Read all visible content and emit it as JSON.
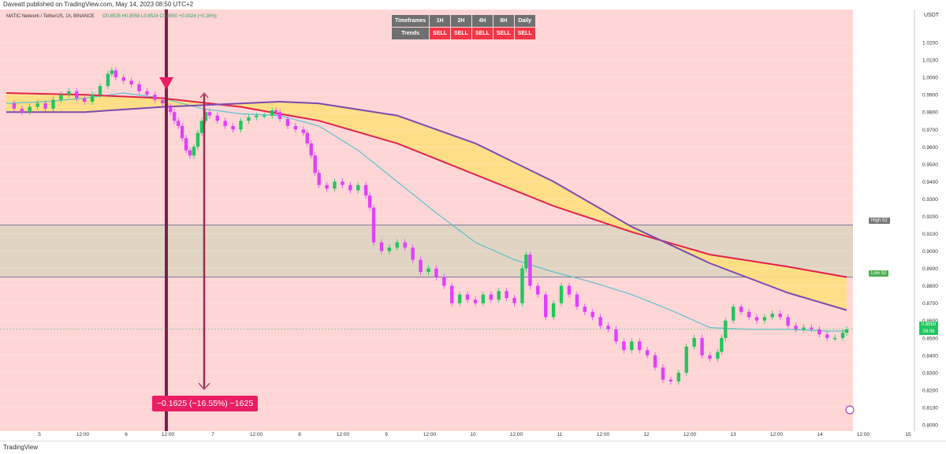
{
  "header": {
    "text": "Daveatt published on TradingView.com, May 14, 2023 08:50 UTC+2"
  },
  "footer": {
    "brand": "TradingView"
  },
  "measure": {
    "label": "−0.1625 (−16.55%) −1625"
  },
  "levels": {
    "high": "High 52",
    "low": "Low 52"
  },
  "price_tag": {
    "value": "0.8550",
    "sub": "09:06"
  },
  "timeframes": {
    "header": [
      "Timeframes",
      "1H",
      "2H",
      "4H",
      "8H",
      "Daily"
    ],
    "row_label": "Trends",
    "values": [
      "SELL",
      "SELL",
      "SELL",
      "SELL",
      "SELL"
    ]
  },
  "colors": {
    "bg_sell": "#ffd6d6",
    "bull": "#22c55e",
    "bear": "#e040fb",
    "ema_fast": "#5bc0cf",
    "ema_red": "#e0234e",
    "ema_purple": "#7b4bb0",
    "fill": "#ffdf80",
    "zone": "#dcd4c0"
  },
  "chart_data": {
    "type": "line",
    "title": "MATIC Network / TetherUS, 1h, BINANCE",
    "ohlc_label": "O0.8525 H0.8558 L0.8524 C0.8550 +0.0024 (+0.28%)",
    "y_axis_unit": "USDT",
    "ylim": [
      0.8,
      1.03
    ],
    "yticks": [
      "1.0200",
      "1.0100",
      "1.0000",
      "0.9900",
      "0.9800",
      "0.9700",
      "0.9600",
      "0.9500",
      "0.9400",
      "0.9300",
      "0.9200",
      "0.9100",
      "0.9000",
      "0.8900",
      "0.8800",
      "0.8700",
      "0.8600",
      "0.8500",
      "0.8400",
      "0.8300",
      "0.8200",
      "0.8100",
      "0.8000"
    ],
    "xticks": [
      "5",
      "12:00",
      "6",
      "12:00",
      "7",
      "12:00",
      "8",
      "12:00",
      "9",
      "12:00",
      "10",
      "12:00",
      "11",
      "12:00",
      "12",
      "12:00",
      "13",
      "12:00",
      "14",
      "12:00",
      "15"
    ],
    "zone": {
      "high": 0.915,
      "low": 0.885
    },
    "series": [
      {
        "kind": "price",
        "x": [
          0,
          10,
          20,
          30,
          40,
          50,
          60,
          70,
          80,
          90,
          100,
          110,
          120,
          130,
          135,
          140,
          150,
          160,
          170,
          180,
          190,
          200,
          205,
          210,
          215,
          220,
          225,
          230,
          235,
          240,
          245,
          250,
          255,
          260,
          270,
          280,
          290,
          300,
          310,
          320,
          330,
          340,
          345,
          350,
          360,
          370,
          380,
          385,
          390,
          395,
          400,
          410,
          420,
          430,
          440,
          450,
          460,
          465,
          470,
          480,
          490,
          500,
          510,
          520,
          530,
          540,
          550,
          560,
          570,
          580,
          590,
          600,
          610,
          620,
          630,
          640,
          650,
          660,
          665,
          670,
          680,
          690,
          700,
          710,
          720,
          730,
          740,
          750,
          760,
          770,
          780,
          790,
          800,
          810,
          820,
          830,
          840,
          850,
          860,
          870,
          880,
          890,
          900,
          910,
          915,
          920,
          930,
          940,
          950,
          960,
          970,
          980,
          990,
          1000,
          1010,
          1020,
          1030,
          1040,
          1050,
          1060,
          1070,
          1075
        ],
        "y": [
          0.985,
          0.982,
          0.98,
          0.983,
          0.985,
          0.982,
          0.987,
          0.99,
          0.992,
          0.988,
          0.986,
          0.99,
          0.995,
          1.002,
          1.004,
          1.0,
          0.998,
          0.996,
          0.992,
          0.99,
          0.987,
          0.985,
          0.983,
          0.98,
          0.975,
          0.972,
          0.965,
          0.958,
          0.955,
          0.96,
          0.968,
          0.975,
          0.98,
          0.978,
          0.975,
          0.972,
          0.97,
          0.975,
          0.977,
          0.978,
          0.978,
          0.981,
          0.98,
          0.976,
          0.972,
          0.97,
          0.968,
          0.962,
          0.955,
          0.945,
          0.938,
          0.936,
          0.94,
          0.938,
          0.935,
          0.938,
          0.932,
          0.925,
          0.905,
          0.9,
          0.902,
          0.905,
          0.902,
          0.895,
          0.888,
          0.89,
          0.885,
          0.88,
          0.87,
          0.875,
          0.872,
          0.87,
          0.875,
          0.872,
          0.877,
          0.873,
          0.87,
          0.89,
          0.898,
          0.88,
          0.875,
          0.862,
          0.87,
          0.88,
          0.875,
          0.868,
          0.865,
          0.862,
          0.857,
          0.855,
          0.848,
          0.843,
          0.848,
          0.843,
          0.84,
          0.833,
          0.826,
          0.825,
          0.83,
          0.845,
          0.85,
          0.84,
          0.838,
          0.842,
          0.85,
          0.86,
          0.868,
          0.865,
          0.862,
          0.86,
          0.862,
          0.864,
          0.862,
          0.857,
          0.855,
          0.856,
          0.855,
          0.852,
          0.85,
          0.85,
          0.853,
          0.855
        ]
      },
      {
        "kind": "ema_fast",
        "x": [
          0,
          50,
          100,
          150,
          200,
          250,
          300,
          350,
          400,
          450,
          500,
          550,
          600,
          650,
          700,
          750,
          800,
          850,
          900,
          950,
          1000,
          1050,
          1075
        ],
        "y": [
          0.985,
          0.986,
          0.988,
          0.991,
          0.988,
          0.982,
          0.979,
          0.978,
          0.972,
          0.958,
          0.94,
          0.922,
          0.905,
          0.895,
          0.888,
          0.882,
          0.875,
          0.866,
          0.856,
          0.855,
          0.855,
          0.854,
          0.854
        ]
      },
      {
        "kind": "ema_red",
        "x": [
          0,
          100,
          200,
          300,
          400,
          500,
          600,
          700,
          800,
          900,
          1000,
          1075
        ],
        "y": [
          0.991,
          0.99,
          0.988,
          0.983,
          0.975,
          0.962,
          0.944,
          0.926,
          0.911,
          0.898,
          0.891,
          0.885
        ]
      },
      {
        "kind": "ema_purple",
        "x": [
          0,
          100,
          200,
          300,
          350,
          400,
          500,
          600,
          700,
          800,
          900,
          1000,
          1075
        ],
        "y": [
          0.98,
          0.98,
          0.983,
          0.985,
          0.986,
          0.985,
          0.978,
          0.962,
          0.94,
          0.914,
          0.893,
          0.876,
          0.866
        ]
      }
    ]
  }
}
